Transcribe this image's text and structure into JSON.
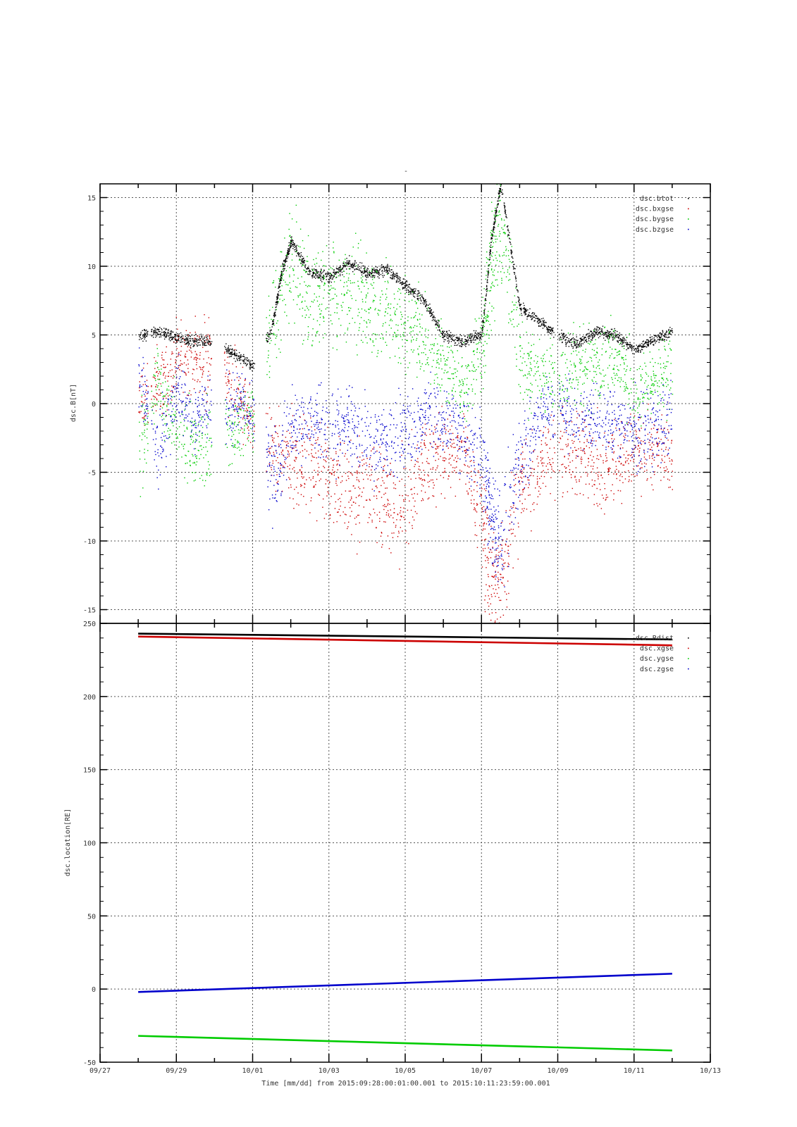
{
  "chart_data": [
    {
      "type": "scatter",
      "title": "-",
      "ylabel": "dsc.B[nT]",
      "ylim": [
        -16,
        16
      ],
      "yticks": [
        -15,
        -10,
        -5,
        0,
        5,
        10,
        15
      ],
      "xlim": [
        "09/27",
        "10/13"
      ],
      "grid": true,
      "legend_position": "top-right",
      "series": [
        {
          "name": "dsc.btot",
          "color": "#000000",
          "x": [
            "09/28 00:00",
            "09/28 12:00",
            "09/29 00:00",
            "09/29 12:00",
            "09/30 00:00",
            "09/30 12:00",
            "10/01 00:00",
            "10/01 12:00",
            "10/01 18:00",
            "10/02 00:00",
            "10/02 12:00",
            "10/03 00:00",
            "10/03 12:00",
            "10/04 00:00",
            "10/04 12:00",
            "10/05 00:00",
            "10/05 12:00",
            "10/06 00:00",
            "10/06 12:00",
            "10/07 00:00",
            "10/07 06:00",
            "10/07 12:00",
            "10/08 00:00",
            "10/08 12:00",
            "10/09 00:00",
            "10/09 12:00",
            "10/10 00:00",
            "10/10 12:00",
            "10/11 00:00",
            "10/11 12:00",
            "10/12 00:00"
          ],
          "y": [
            4.9,
            5.3,
            4.8,
            4.6,
            4.6,
            3.6,
            2.8,
            5.5,
            9.5,
            11.8,
            9.6,
            9.2,
            10.3,
            9.5,
            9.8,
            8.6,
            7.5,
            5,
            4.5,
            5.1,
            12,
            16,
            7,
            6,
            5,
            4.4,
            5.3,
            5,
            3.9,
            4.7,
            5.3
          ]
        },
        {
          "name": "dsc.bxgse",
          "color": "#cc0000",
          "x": [
            "09/28 00:00",
            "09/28 12:00",
            "09/29 00:00",
            "09/29 12:00",
            "09/30 00:00",
            "09/30 12:00",
            "10/01 00:00",
            "10/01 12:00",
            "10/02 00:00",
            "10/02 12:00",
            "10/03 00:00",
            "10/03 12:00",
            "10/04 00:00",
            "10/04 12:00",
            "10/05 00:00",
            "10/05 12:00",
            "10/06 00:00",
            "10/06 12:00",
            "10/07 00:00",
            "10/07 06:00",
            "10/07 12:00",
            "10/08 00:00",
            "10/08 12:00",
            "10/09 00:00",
            "10/09 12:00",
            "10/10 00:00",
            "10/10 12:00",
            "10/11 00:00",
            "10/11 12:00",
            "10/12 00:00"
          ],
          "y": [
            0,
            1.5,
            3,
            3.5,
            3,
            1.2,
            -1.5,
            -3,
            -4,
            -4.5,
            -5.5,
            -6.5,
            -6,
            -7,
            -7.5,
            -4,
            -3.5,
            -3.5,
            -8,
            -14,
            -13,
            -6,
            -4.5,
            -3.5,
            -3.5,
            -4.5,
            -4,
            -3,
            -3.5,
            -4
          ]
        },
        {
          "name": "dsc.bygse",
          "color": "#00cc00",
          "x": [
            "09/28 00:00",
            "09/28 12:00",
            "09/29 00:00",
            "09/29 12:00",
            "09/30 00:00",
            "09/30 12:00",
            "10/01 00:00",
            "10/01 12:00",
            "10/02 00:00",
            "10/02 12:00",
            "10/03 00:00",
            "10/03 12:00",
            "10/04 00:00",
            "10/04 12:00",
            "10/05 00:00",
            "10/05 12:00",
            "10/06 00:00",
            "10/06 12:00",
            "10/07 00:00",
            "10/07 06:00",
            "10/07 12:00",
            "10/08 00:00",
            "10/08 12:00",
            "10/09 00:00",
            "10/09 12:00",
            "10/10 00:00",
            "10/10 12:00",
            "10/11 00:00",
            "10/11 12:00",
            "10/12 00:00"
          ],
          "y": [
            -4,
            1.5,
            -2,
            -3,
            -2.5,
            -2,
            -1,
            6,
            10.5,
            7.5,
            8.5,
            8,
            7.5,
            6.5,
            6,
            5,
            3,
            1,
            4,
            10,
            13,
            3,
            2,
            2,
            2.5,
            3,
            3.5,
            1,
            1.5,
            3
          ]
        },
        {
          "name": "dsc.bzgse",
          "color": "#0000cc",
          "x": [
            "09/28 00:00",
            "09/28 12:00",
            "09/29 00:00",
            "09/29 12:00",
            "09/30 00:00",
            "09/30 12:00",
            "10/01 00:00",
            "10/01 12:00",
            "10/02 00:00",
            "10/02 12:00",
            "10/03 00:00",
            "10/03 12:00",
            "10/04 00:00",
            "10/04 12:00",
            "10/05 00:00",
            "10/05 12:00",
            "10/06 00:00",
            "10/06 12:00",
            "10/07 00:00",
            "10/07 06:00",
            "10/07 12:00",
            "10/08 00:00",
            "10/08 12:00",
            "10/09 00:00",
            "10/09 12:00",
            "10/10 00:00",
            "10/10 12:00",
            "10/11 00:00",
            "10/11 12:00",
            "10/12 00:00"
          ],
          "y": [
            2.5,
            -3.5,
            1,
            -1,
            0,
            -0.5,
            0,
            -5,
            -2,
            -1,
            -2,
            -1.5,
            -3,
            -2.5,
            -2,
            -1,
            -1,
            -2,
            -4,
            -8,
            -10,
            -4,
            -1,
            0,
            -1,
            -1,
            -1.5,
            -2,
            -2,
            -1
          ]
        }
      ]
    },
    {
      "type": "line",
      "ylabel": "dsc.location[RE]",
      "xlabel": "Time [mm/dd]  from 2015:09:28:00:01:00.001  to  2015:10:11:23:59:00.001",
      "ylim": [
        -50,
        250
      ],
      "yticks": [
        -50,
        0,
        50,
        100,
        150,
        200,
        250
      ],
      "xlim": [
        "09/27",
        "10/13"
      ],
      "xticks": [
        "09/27",
        "09/29",
        "10/01",
        "10/03",
        "10/05",
        "10/07",
        "10/09",
        "10/11",
        "10/13"
      ],
      "grid": true,
      "legend_position": "top-right",
      "series": [
        {
          "name": "dsc.Rdist",
          "color": "#000000",
          "x": [
            "09/28 00:00",
            "10/12 00:00"
          ],
          "y": [
            243,
            239
          ]
        },
        {
          "name": "dsc.xgse",
          "color": "#cc0000",
          "x": [
            "09/28 00:00",
            "10/12 00:00"
          ],
          "y": [
            241,
            235
          ]
        },
        {
          "name": "dsc.ygse",
          "color": "#00cc00",
          "x": [
            "09/28 00:00",
            "10/12 00:00"
          ],
          "y": [
            -32,
            -42
          ]
        },
        {
          "name": "dsc.zgse",
          "color": "#0000cc",
          "x": [
            "09/28 00:00",
            "10/12 00:00"
          ],
          "y": [
            -2,
            10.5
          ]
        }
      ]
    }
  ]
}
